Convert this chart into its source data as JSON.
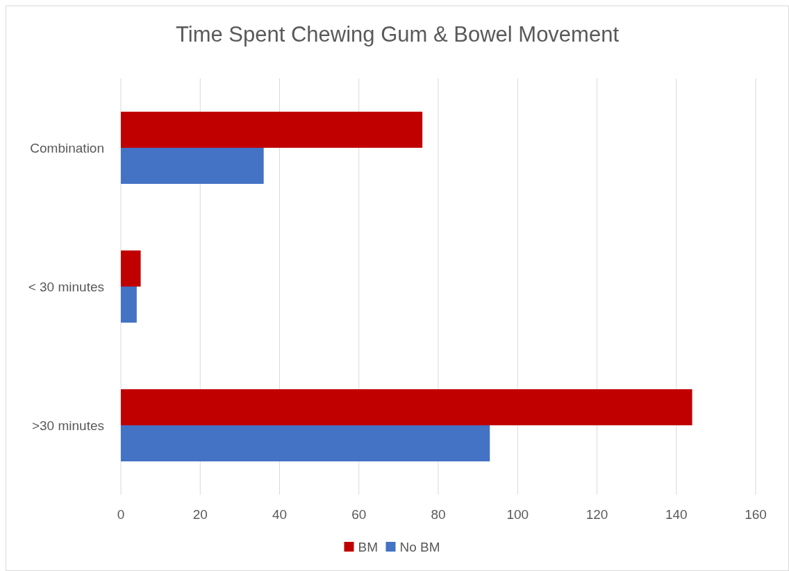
{
  "chart_data": {
    "type": "bar",
    "orientation": "horizontal",
    "title": "Time Spent Chewing Gum & Bowel Movement",
    "categories": [
      "Combination",
      "< 30 minutes",
      ">30 minutes"
    ],
    "series": [
      {
        "name": "BM",
        "color": "#c00000",
        "values": [
          76,
          5,
          144
        ]
      },
      {
        "name": "No BM",
        "color": "#4472c4",
        "values": [
          36,
          4,
          93
        ]
      }
    ],
    "xlim": [
      0,
      160
    ],
    "xticks": [
      0,
      20,
      40,
      60,
      80,
      100,
      120,
      140,
      160
    ],
    "grid": "x",
    "legend": "bottom"
  }
}
